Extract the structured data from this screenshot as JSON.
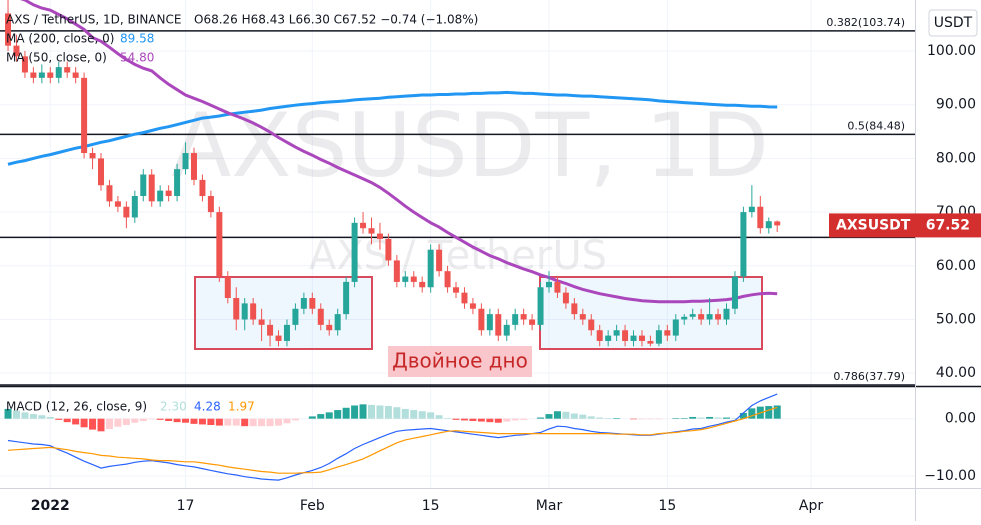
{
  "chart_data": {
    "type": "candlestick",
    "header": {
      "symbol": "AXS / TetherUS, 1D, BINANCE",
      "ohlc": "O68.26 H68.43 L66.30 C67.52 −0.74 (−1.08%)"
    },
    "watermark": "AXSUSDT, 1D",
    "watermark_sub": "AXS / TetherUS",
    "currency": "USDT",
    "price_tag": {
      "label": "AXSUSDT",
      "value": 67.52,
      "value_label": "67.52",
      "color": "#d32f2f"
    },
    "annotation": "Двойное дно",
    "up_color": "#26a69a",
    "down_color": "#ef5350",
    "candles": [
      [
        107,
        109.5,
        100,
        101
      ],
      [
        101,
        103,
        98,
        99
      ],
      [
        99,
        100,
        95,
        96
      ],
      [
        96,
        97,
        94,
        95
      ],
      [
        95,
        97.5,
        94,
        96
      ],
      [
        96,
        97,
        94,
        95
      ],
      [
        95,
        98,
        94,
        97
      ],
      [
        97,
        98,
        95,
        96
      ],
      [
        96,
        97,
        94,
        95
      ],
      [
        95,
        96,
        80,
        81
      ],
      [
        81,
        82,
        78,
        80
      ],
      [
        80,
        81,
        74,
        75
      ],
      [
        75,
        76,
        71,
        72
      ],
      [
        72,
        73,
        70,
        71
      ],
      [
        71,
        72,
        67,
        69
      ],
      [
        69,
        74,
        68,
        73
      ],
      [
        73,
        78,
        72,
        77
      ],
      [
        77,
        78,
        71,
        72
      ],
      [
        72,
        75,
        71,
        74
      ],
      [
        74,
        75,
        72,
        73
      ],
      [
        73,
        79,
        72,
        78
      ],
      [
        78,
        83,
        77,
        81
      ],
      [
        81,
        82,
        75,
        76
      ],
      [
        76,
        77,
        72,
        73
      ],
      [
        73,
        74,
        69,
        70
      ],
      [
        70,
        71,
        57,
        58
      ],
      [
        58,
        59,
        53,
        54
      ],
      [
        54,
        56,
        48,
        50
      ],
      [
        50,
        54,
        48,
        53
      ],
      [
        53,
        54,
        49,
        50
      ],
      [
        50,
        52,
        46,
        49
      ],
      [
        49,
        50,
        45,
        47
      ],
      [
        47,
        48,
        45,
        46
      ],
      [
        46,
        50,
        45,
        49
      ],
      [
        49,
        53,
        48,
        52
      ],
      [
        52,
        55,
        51,
        54
      ],
      [
        54,
        55,
        51,
        52
      ],
      [
        52,
        53,
        48,
        49
      ],
      [
        49,
        50,
        47,
        48
      ],
      [
        48,
        52,
        47,
        51
      ],
      [
        51,
        58,
        50,
        57
      ],
      [
        57,
        69,
        56,
        68
      ],
      [
        68,
        70,
        66,
        67
      ],
      [
        67,
        69,
        64,
        66
      ],
      [
        66,
        68,
        63,
        65
      ],
      [
        65,
        66,
        60,
        61
      ],
      [
        61,
        62,
        56,
        57
      ],
      [
        57,
        59,
        56,
        58
      ],
      [
        58,
        59,
        56,
        57
      ],
      [
        57,
        58,
        55,
        56
      ],
      [
        56,
        64,
        55,
        63
      ],
      [
        63,
        64,
        58,
        59
      ],
      [
        59,
        60,
        55,
        56
      ],
      [
        56,
        57,
        54,
        55
      ],
      [
        55,
        56,
        52,
        53
      ],
      [
        53,
        54,
        51,
        52
      ],
      [
        52,
        53,
        47,
        48
      ],
      [
        48,
        52,
        47,
        51
      ],
      [
        51,
        52,
        46,
        47
      ],
      [
        47,
        50,
        46,
        49
      ],
      [
        49,
        52,
        48,
        51
      ],
      [
        51,
        52,
        49,
        50
      ],
      [
        50,
        51,
        48,
        49
      ],
      [
        49,
        57,
        48,
        56
      ],
      [
        56,
        59,
        55,
        57
      ],
      [
        57,
        58,
        54,
        55
      ],
      [
        55,
        56,
        52,
        53
      ],
      [
        53,
        54,
        50,
        51
      ],
      [
        51,
        52,
        49,
        50
      ],
      [
        50,
        51,
        47,
        48
      ],
      [
        48,
        49,
        45,
        46
      ],
      [
        46,
        48,
        45,
        47
      ],
      [
        47,
        49,
        46,
        48
      ],
      [
        48,
        49,
        45,
        46
      ],
      [
        46,
        48,
        45,
        47
      ],
      [
        47,
        48,
        45,
        46
      ],
      [
        46,
        47,
        45,
        45.5
      ],
      [
        45.5,
        49,
        45,
        48
      ],
      [
        48,
        49,
        46,
        47
      ],
      [
        47,
        51,
        46,
        50
      ],
      [
        50,
        51,
        49,
        50.5
      ],
      [
        50.5,
        52,
        50,
        51
      ],
      [
        51,
        52,
        49,
        50
      ],
      [
        50,
        54,
        49,
        51
      ],
      [
        51,
        52,
        49,
        50
      ],
      [
        50,
        53,
        49,
        52
      ],
      [
        52,
        59,
        51,
        58
      ],
      [
        58,
        71,
        57,
        70
      ],
      [
        70,
        75,
        69,
        71
      ],
      [
        71,
        73,
        66,
        67
      ],
      [
        67,
        69,
        66,
        68.3
      ],
      [
        68.26,
        68.43,
        66.3,
        67.52
      ]
    ],
    "overlays": [
      {
        "name": "MA (200, close, 0)",
        "color": "#2196f3",
        "last_label": "89.58",
        "values": [
          78.9,
          79.3,
          79.6,
          80.0,
          80.4,
          80.7,
          81.1,
          81.5,
          81.9,
          82.2,
          82.6,
          83.0,
          83.3,
          83.7,
          84.1,
          84.5,
          84.8,
          85.2,
          85.6,
          85.9,
          86.3,
          86.7,
          87.1,
          87.5,
          87.7,
          87.9,
          88.2,
          88.4,
          88.6,
          88.8,
          89.0,
          89.3,
          89.5,
          89.7,
          89.9,
          90.1,
          90.2,
          90.4,
          90.5,
          90.6,
          90.7,
          90.9,
          91.0,
          91.1,
          91.2,
          91.4,
          91.5,
          91.6,
          91.7,
          91.8,
          91.8,
          91.9,
          91.9,
          92.0,
          92.0,
          92.1,
          92.1,
          92.2,
          92.2,
          92.3,
          92.2,
          92.1,
          92.1,
          92.0,
          91.9,
          91.8,
          91.8,
          91.7,
          91.6,
          91.6,
          91.5,
          91.4,
          91.3,
          91.2,
          91.1,
          91.0,
          90.9,
          90.7,
          90.6,
          90.5,
          90.4,
          90.3,
          90.2,
          90.1,
          90.0,
          89.9,
          89.9,
          89.8,
          89.7,
          89.7,
          89.6,
          89.58
        ]
      },
      {
        "name": "MA (50, close, 0)",
        "color": "#ab47bc",
        "last_label": "54.80",
        "values": [
          111,
          110,
          109.5,
          108.6,
          108,
          107.6,
          106.8,
          106,
          105,
          104,
          102.5,
          101.8,
          100.7,
          99.5,
          98.4,
          97.5,
          96.8,
          96.3,
          95,
          93.8,
          92.8,
          91.8,
          91.2,
          90.6,
          89.9,
          89.2,
          88.5,
          87.9,
          87.3,
          86.6,
          85.8,
          84.9,
          83.9,
          83,
          82.1,
          81.3,
          80.6,
          79.8,
          79.1,
          78.3,
          77.6,
          76.9,
          76.2,
          75.5,
          74.6,
          73.5,
          72.3,
          71.1,
          70,
          69,
          68,
          67.2,
          66.2,
          65.3,
          64.4,
          63.5,
          62.7,
          61.9,
          61.3,
          60.6,
          60,
          59.4,
          58.9,
          58.3,
          57.8,
          57.2,
          56.7,
          56.1,
          55.6,
          55.2,
          54.8,
          54.5,
          54.2,
          53.9,
          53.7,
          53.5,
          53.4,
          53.3,
          53.3,
          53.3,
          53.3,
          53.4,
          53.4,
          53.5,
          53.6,
          53.7,
          53.9,
          54.3,
          54.6,
          54.8,
          54.9,
          54.8
        ]
      }
    ],
    "levels": [
      {
        "value": 103.74,
        "label": "0.382(103.74)"
      },
      {
        "value": 84.48,
        "label": "0.5(84.48)"
      },
      {
        "value": 37.79,
        "label": "0.786(37.79)"
      }
    ],
    "hline": 65.3,
    "xlim": [
      -0.95,
      107.3
    ],
    "xticks": [
      {
        "value": 5,
        "label": "2022"
      },
      {
        "value": 21,
        "label": "17"
      },
      {
        "value": 36,
        "label": "Feb"
      },
      {
        "value": 50,
        "label": "15"
      },
      {
        "value": 64,
        "label": "Mar"
      },
      {
        "value": 78,
        "label": "15"
      },
      {
        "value": 95,
        "label": "Apr"
      }
    ],
    "ylim": [
      37.8,
      109.5
    ],
    "yticks": [
      {
        "value": 40,
        "label": "40.00"
      },
      {
        "value": 50,
        "label": "50.00"
      },
      {
        "value": 60,
        "label": "60.00"
      },
      {
        "value": 70,
        "label": "70.00"
      },
      {
        "value": 80,
        "label": "80.00"
      },
      {
        "value": 90,
        "label": "90.00"
      },
      {
        "value": 100,
        "label": "100.00"
      }
    ],
    "grid": true,
    "macd": {
      "name": "MACD (12, 26, close, 9)",
      "ylim": [
        -12.07,
        5.17
      ],
      "yticks": [
        {
          "value": 0,
          "label": "0.00"
        },
        {
          "value": -10,
          "label": "−10.00"
        }
      ],
      "hist": {
        "last_label": "2.30",
        "colors": [
          "#26a69a",
          "#b2dfdb",
          "#ffcdd2",
          "#ff5252"
        ],
        "values": [
          1.7,
          1.4,
          1.1,
          0.8,
          0.6,
          0.3,
          -0.2,
          -0.6,
          -1.0,
          -1.5,
          -1.9,
          -2.2,
          -1.8,
          -1.4,
          -1.1,
          -0.7,
          -0.4,
          -0.1,
          -0.2,
          -0.4,
          -0.6,
          -0.7,
          -0.9,
          -1.0,
          -1.1,
          -1.2,
          -1.2,
          -1.2,
          -1.3,
          -1.3,
          -1.3,
          -1.3,
          -1.2,
          -0.8,
          -0.3,
          0.0,
          0.4,
          0.8,
          1.1,
          1.5,
          1.9,
          2.3,
          2.5,
          2.4,
          2.3,
          2.2,
          2.0,
          1.7,
          1.5,
          1.3,
          1.1,
          0.6,
          0.1,
          -0.2,
          -0.3,
          -0.4,
          -0.5,
          -0.6,
          -0.7,
          -0.5,
          -0.3,
          -0.2,
          0.0,
          0.2,
          0.8,
          1.3,
          1.2,
          0.9,
          0.7,
          0.4,
          0.2,
          0.1,
          0.1,
          0.0,
          -0.1,
          -0.1,
          -0.1,
          -0.1,
          0.0,
          0.1,
          0.1,
          0.3,
          0.2,
          0.3,
          0.2,
          0.2,
          0.1,
          1.0,
          1.8,
          2.1,
          2.2,
          2.3
        ]
      },
      "macd": {
        "color": "#2962ff",
        "last_label": "4.28",
        "values": [
          -3.8,
          -4.0,
          -4.2,
          -4.4,
          -4.5,
          -4.7,
          -5.4,
          -6.0,
          -6.7,
          -7.4,
          -8.0,
          -8.6,
          -8.3,
          -8.1,
          -7.9,
          -7.6,
          -7.4,
          -7.3,
          -7.5,
          -7.7,
          -8.0,
          -8.2,
          -8.4,
          -8.7,
          -9.0,
          -9.3,
          -9.6,
          -9.8,
          -10.1,
          -10.3,
          -10.5,
          -10.6,
          -10.7,
          -10.3,
          -9.8,
          -9.4,
          -9.0,
          -8.5,
          -7.8,
          -6.9,
          -6.1,
          -5.2,
          -4.5,
          -3.9,
          -3.3,
          -2.7,
          -2.2,
          -2.0,
          -1.9,
          -1.8,
          -1.7,
          -1.9,
          -2.1,
          -2.3,
          -2.5,
          -2.7,
          -2.9,
          -3.1,
          -3.3,
          -3.1,
          -2.9,
          -2.8,
          -2.6,
          -2.4,
          -1.8,
          -1.3,
          -1.4,
          -1.7,
          -1.9,
          -2.2,
          -2.4,
          -2.5,
          -2.6,
          -2.7,
          -2.8,
          -2.9,
          -2.9,
          -2.7,
          -2.5,
          -2.3,
          -2.1,
          -1.8,
          -1.7,
          -1.3,
          -1.0,
          -0.6,
          -0.3,
          1.0,
          2.3,
          3.1,
          3.7,
          4.28
        ]
      },
      "signal": {
        "color": "#ff9800",
        "last_label": "1.97",
        "values": [
          -5.5,
          -5.4,
          -5.3,
          -5.2,
          -5.1,
          -5.0,
          -5.2,
          -5.4,
          -5.7,
          -5.9,
          -6.1,
          -6.4,
          -6.5,
          -6.7,
          -6.8,
          -6.9,
          -7.0,
          -7.2,
          -7.3,
          -7.3,
          -7.4,
          -7.5,
          -7.5,
          -7.7,
          -7.9,
          -8.1,
          -8.4,
          -8.6,
          -8.8,
          -9.0,
          -9.2,
          -9.3,
          -9.5,
          -9.5,
          -9.5,
          -9.4,
          -9.4,
          -9.3,
          -8.9,
          -8.4,
          -8.0,
          -7.5,
          -7.0,
          -6.3,
          -5.6,
          -4.9,
          -4.2,
          -3.7,
          -3.4,
          -3.1,
          -2.8,
          -2.5,
          -2.2,
          -2.1,
          -2.2,
          -2.3,
          -2.4,
          -2.5,
          -2.6,
          -2.6,
          -2.6,
          -2.6,
          -2.6,
          -2.6,
          -2.6,
          -2.6,
          -2.6,
          -2.6,
          -2.6,
          -2.6,
          -2.6,
          -2.6,
          -2.7,
          -2.7,
          -2.7,
          -2.8,
          -2.8,
          -2.6,
          -2.5,
          -2.4,
          -2.2,
          -2.1,
          -1.9,
          -1.6,
          -1.2,
          -0.8,
          -0.4,
          0.0,
          0.5,
          1.0,
          1.5,
          1.97
        ]
      }
    }
  }
}
